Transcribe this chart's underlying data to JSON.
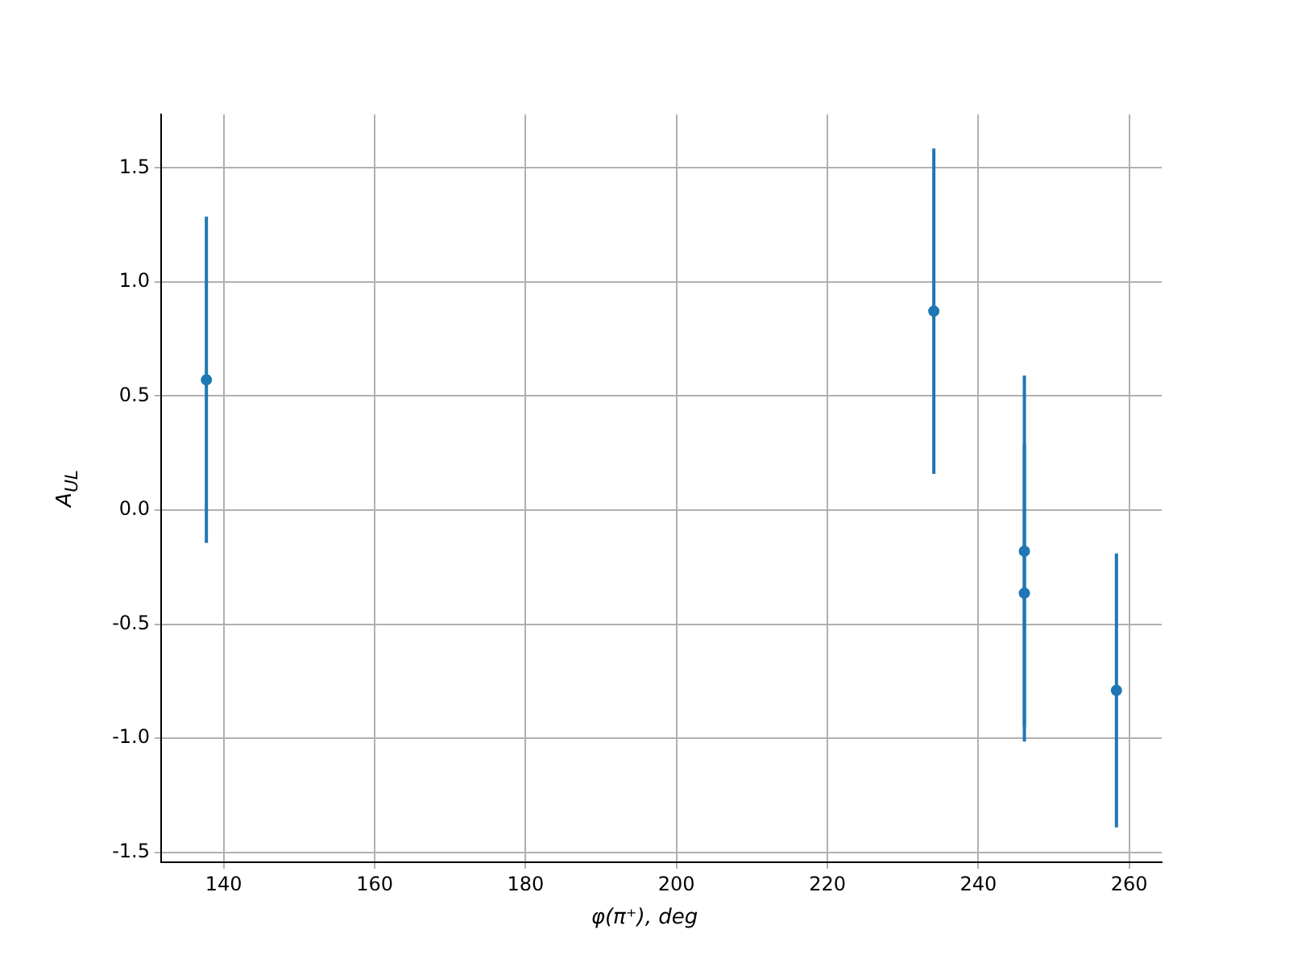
{
  "chart_data": {
    "type": "scatter",
    "xlabel": "φ(π⁺), deg",
    "ylabel": "A$_{UL}$",
    "x": [
      137.7,
      234.1,
      246.1,
      246.1,
      258.3
    ],
    "series": [
      {
        "color": "#1f77b4",
        "values": [
          0.571,
          0.872,
          -0.18,
          -0.364,
          -0.79
        ],
        "errors": [
          0.715,
          0.713,
          0.77,
          0.65,
          0.6
        ]
      }
    ],
    "xlim": [
      131.7,
      264.3
    ],
    "xticks": [
      140,
      160,
      180,
      200,
      220,
      240,
      260
    ],
    "ylim": [
      -1.543,
      1.734
    ],
    "yticks": [
      -1.5,
      {
        "value": -1,
        "label": "-1.0"
      },
      -0.5,
      {
        "value": 0,
        "label": "0.0"
      },
      0.5,
      {
        "value": 1,
        "label": "1.0"
      },
      1.5
    ],
    "grid": true,
    "marker": "circle",
    "legend": false
  }
}
